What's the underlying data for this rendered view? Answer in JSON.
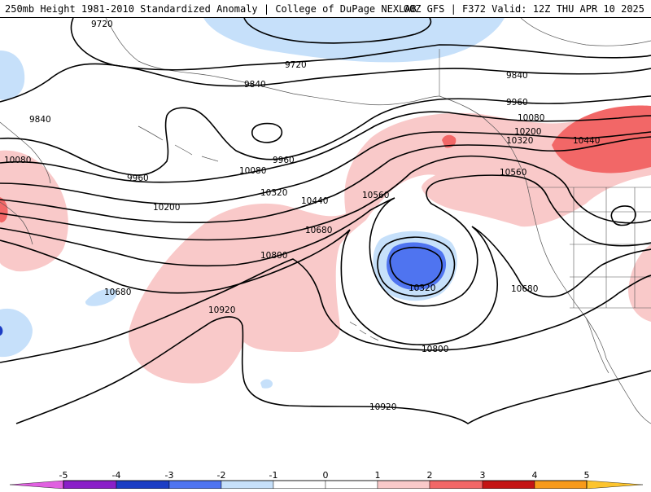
{
  "header": {
    "left_title": "250mb Height 1981-2010 Standardized Anomaly | College of DuPage NEXLAB",
    "right_title": "00Z GFS | F372 Valid: 12Z THU APR 10 2025"
  },
  "colors": {
    "neg5": "#e060e0",
    "neg4": "#8a1fc8",
    "neg3": "#1c3dc4",
    "neg2": "#4f74f0",
    "neg1": "#c6e0fa",
    "zero": "#ffffff",
    "pos1": "#f9c9c9",
    "pos2": "#f26767",
    "pos3": "#c41414",
    "pos4": "#f79a1a",
    "pos5": "#fcc42e"
  },
  "contour_labels": [
    {
      "id": "9720-a",
      "text": "9720"
    },
    {
      "id": "9720-b",
      "text": "9720"
    },
    {
      "id": "9840-a",
      "text": "9840"
    },
    {
      "id": "9840-b",
      "text": "9840"
    },
    {
      "id": "9840-c",
      "text": "9840"
    },
    {
      "id": "9960-a",
      "text": "9960"
    },
    {
      "id": "9960-b",
      "text": "9960"
    },
    {
      "id": "9960-c",
      "text": "9960"
    },
    {
      "id": "10080-a",
      "text": "10080"
    },
    {
      "id": "10080-b",
      "text": "10080"
    },
    {
      "id": "10080-c",
      "text": "10080"
    },
    {
      "id": "10200-a",
      "text": "10200"
    },
    {
      "id": "10200-b",
      "text": "10200"
    },
    {
      "id": "10320-a",
      "text": "10320"
    },
    {
      "id": "10320-b",
      "text": "10320"
    },
    {
      "id": "10320-c",
      "text": "10320"
    },
    {
      "id": "10440-a",
      "text": "10440"
    },
    {
      "id": "10440-b",
      "text": "10440"
    },
    {
      "id": "10560-a",
      "text": "10560"
    },
    {
      "id": "10560-b",
      "text": "10560"
    },
    {
      "id": "10680-a",
      "text": "10680"
    },
    {
      "id": "10680-b",
      "text": "10680"
    },
    {
      "id": "10680-c",
      "text": "10680"
    },
    {
      "id": "10800-a",
      "text": "10800"
    },
    {
      "id": "10800-b",
      "text": "10800"
    },
    {
      "id": "10920-a",
      "text": "10920"
    },
    {
      "id": "10920-b",
      "text": "10920"
    }
  ],
  "colorbar": {
    "ticks": [
      "-5",
      "-4",
      "-3",
      "-2",
      "-1",
      "0",
      "1",
      "2",
      "3",
      "4",
      "5"
    ]
  }
}
